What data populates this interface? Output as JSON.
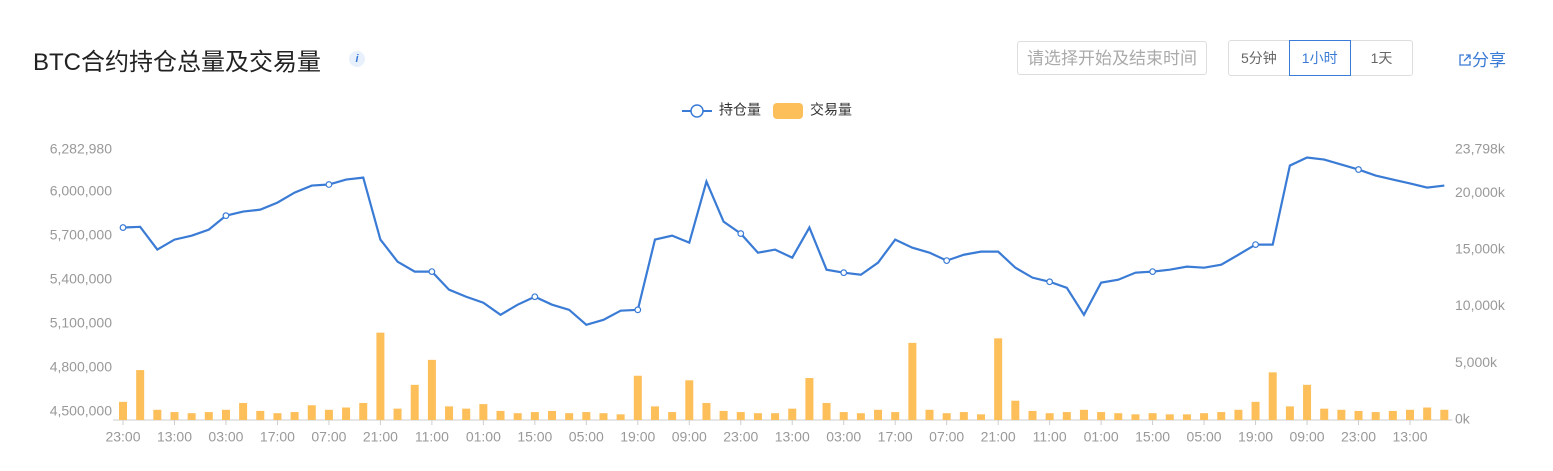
{
  "header": {
    "title": "BTC合约持仓总量及交易量",
    "info_icon": "i",
    "date_placeholder": "请选择开始及结束时间",
    "intervals": [
      "5分钟",
      "1小时",
      "1天"
    ],
    "active_interval_index": 1,
    "share": "分享"
  },
  "chart_data": {
    "type": "combo",
    "categories": [
      "23:00",
      null,
      null,
      "13:00",
      null,
      null,
      "03:00",
      null,
      null,
      "17:00",
      null,
      null,
      "07:00",
      null,
      null,
      "21:00",
      null,
      null,
      "11:00",
      null,
      null,
      "01:00",
      null,
      null,
      "15:00",
      null,
      null,
      "05:00",
      null,
      null,
      "19:00",
      null,
      null,
      "09:00",
      null,
      null,
      "23:00",
      null,
      null,
      "13:00",
      null,
      null,
      "03:00",
      null,
      null,
      "17:00",
      null,
      null,
      "07:00",
      null,
      null,
      "21:00",
      null,
      null,
      "11:00",
      null,
      null,
      "01:00",
      null,
      null,
      "15:00",
      null,
      null,
      "05:00",
      null,
      null,
      "19:00",
      null,
      null,
      "09:00",
      null,
      null,
      "23:00",
      null,
      null,
      "13:00",
      null,
      null
    ],
    "series": [
      {
        "name": "持仓量",
        "type": "line",
        "color": "#3a7bd5",
        "values": [
          5755000,
          5760000,
          5605000,
          5673000,
          5700000,
          5741000,
          5836000,
          5864000,
          5877000,
          5925000,
          5993000,
          6041000,
          6048000,
          6082000,
          6095000,
          5673000,
          5523000,
          5455000,
          5455000,
          5332000,
          5284000,
          5243000,
          5161000,
          5230000,
          5284000,
          5230000,
          5195000,
          5093000,
          5127000,
          5189000,
          5195000,
          5673000,
          5700000,
          5652000,
          6068000,
          5795000,
          5714000,
          5584000,
          5605000,
          5550000,
          5755000,
          5468000,
          5448000,
          5434000,
          5516000,
          5673000,
          5618000,
          5584000,
          5530000,
          5570000,
          5591000,
          5591000,
          5482000,
          5414000,
          5386000,
          5345000,
          5161000,
          5380000,
          5400000,
          5448000,
          5455000,
          5468000,
          5489000,
          5482000,
          5502000,
          5570000,
          5639000,
          5639000,
          6177000,
          6232000,
          6218000,
          6184000,
          6150000,
          6109000,
          6082000,
          6055000,
          6027000,
          6041000
        ]
      },
      {
        "name": "交易量",
        "type": "bar",
        "axis": "y2",
        "color": "#fcbf5a",
        "values": [
          1600,
          4400,
          900,
          700,
          600,
          700,
          900,
          1500,
          800,
          600,
          700,
          1300,
          900,
          1100,
          1500,
          7700,
          1000,
          3100,
          5300,
          1200,
          1000,
          1400,
          800,
          600,
          700,
          800,
          600,
          700,
          600,
          500,
          3900,
          1200,
          700,
          3500,
          1500,
          800,
          700,
          600,
          600,
          1000,
          3700,
          1500,
          700,
          600,
          900,
          700,
          6800,
          900,
          600,
          700,
          500,
          7200,
          1700,
          800,
          600,
          700,
          900,
          700,
          600,
          500,
          600,
          500,
          500,
          600,
          700,
          900,
          1600,
          4200,
          1200,
          3100,
          1000,
          900,
          800,
          700,
          800,
          900,
          1100,
          900
        ]
      }
    ],
    "ylim": [
      4445000,
      6282980
    ],
    "yticks": [
      {
        "value": 4500000,
        "label": "4,500,000"
      },
      {
        "value": 4800000,
        "label": "4,800,000"
      },
      {
        "value": 5100000,
        "label": "5,100,000"
      },
      {
        "value": 5400000,
        "label": "5,400,000"
      },
      {
        "value": 5700000,
        "label": "5,700,000"
      },
      {
        "value": 6000000,
        "label": "6,000,000"
      },
      {
        "value": 6282980,
        "label": "6,282,980"
      }
    ],
    "y2lim": [
      0,
      23798
    ],
    "y2ticks": [
      {
        "value": 0,
        "label": "0k"
      },
      {
        "value": 5000,
        "label": "5,000k"
      },
      {
        "value": 10000,
        "label": "10,000k"
      },
      {
        "value": 15000,
        "label": "15,000k"
      },
      {
        "value": 20000,
        "label": "20,000k"
      },
      {
        "value": 23798,
        "label": "23,798k"
      }
    ],
    "legend": "top",
    "grid": false
  }
}
